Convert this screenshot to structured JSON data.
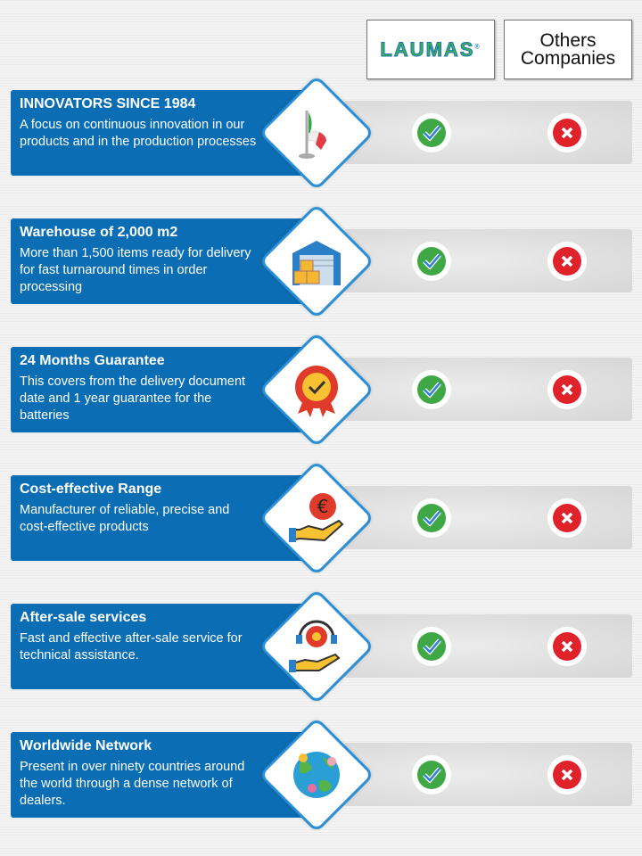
{
  "header": {
    "brand": "LAUMAS",
    "brand_mark": "®",
    "others": "Others Companies"
  },
  "colors": {
    "blue": "#0b6db3",
    "check": "#3fa845",
    "cross": "#e0222a"
  },
  "rows": [
    {
      "title": "INNOVATORS SINCE 1984",
      "text": "A focus on continuous innovation in our products and in the production processes",
      "icon": "italian-flag-icon",
      "laumas": "check",
      "others": "cross"
    },
    {
      "title": "Warehouse of 2,000 m2",
      "text": "More than 1,500 items ready for delivery for fast turnaround times in order processing",
      "icon": "warehouse-icon",
      "laumas": "check",
      "others": "cross"
    },
    {
      "title": "24 Months Guarantee",
      "text": "This covers from the delivery document date and 1 year guarantee for the batteries",
      "icon": "guarantee-badge-icon",
      "laumas": "check",
      "others": "cross"
    },
    {
      "title": "Cost-effective Range",
      "text": "Manufacturer of reliable, precise and cost-effective products",
      "icon": "euro-hand-icon",
      "laumas": "check",
      "others": "cross"
    },
    {
      "title": "After-sale services",
      "text": "Fast and effective after-sale service for technical assistance.",
      "icon": "support-gear-icon",
      "laumas": "check",
      "others": "cross"
    },
    {
      "title": "Worldwide Network",
      "text": "Present in over ninety countries around the world through a dense network of dealers.",
      "icon": "globe-network-icon",
      "laumas": "check",
      "others": "cross"
    }
  ]
}
